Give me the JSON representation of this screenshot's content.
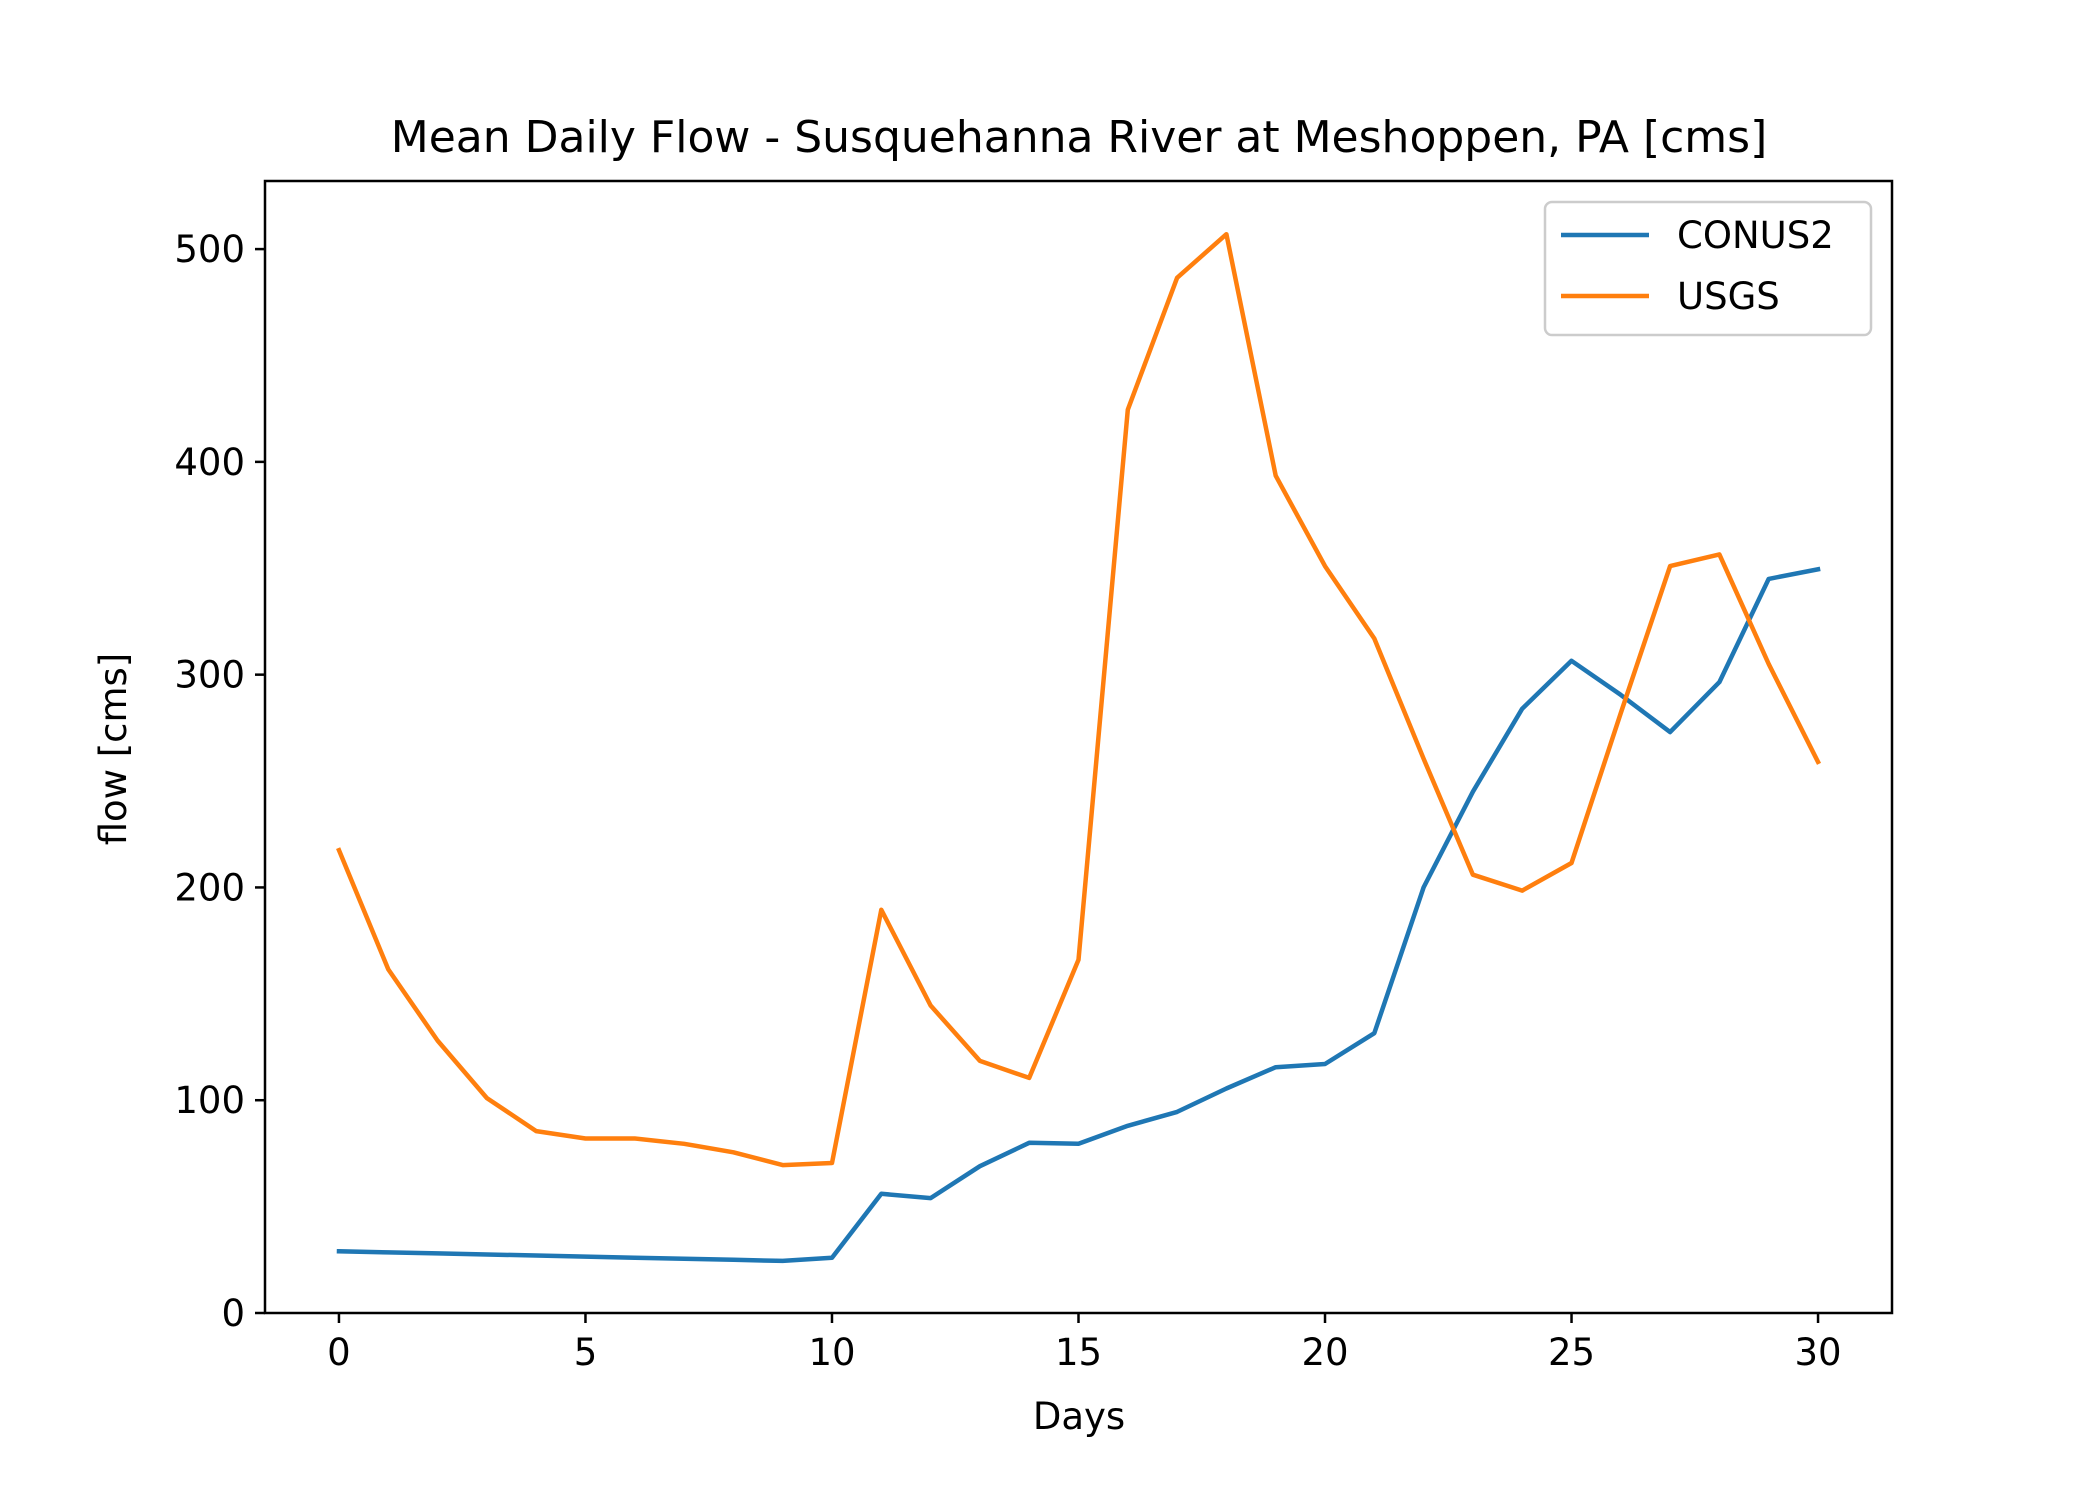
{
  "chart_data": {
    "type": "line",
    "title": "Mean Daily Flow - Susquehanna River at Meshoppen, PA [cms]",
    "xlabel": "Days",
    "ylabel": "flow [cms]",
    "xlim": [
      -1.5,
      31.5
    ],
    "ylim": [
      0,
      532
    ],
    "xticks": [
      0,
      5,
      10,
      15,
      20,
      25,
      30
    ],
    "yticks": [
      0,
      100,
      200,
      300,
      400,
      500
    ],
    "grid": false,
    "legend": "upper right",
    "x": [
      0,
      1,
      2,
      3,
      4,
      5,
      6,
      7,
      8,
      9,
      10,
      11,
      12,
      13,
      14,
      15,
      16,
      17,
      18,
      19,
      20,
      21,
      22,
      23,
      24,
      25,
      26,
      27,
      28,
      29,
      30
    ],
    "series": [
      {
        "name": "CONUS2",
        "color": "#1f77b4",
        "values": [
          29,
          28.5,
          28,
          27.5,
          27,
          26.5,
          26,
          25.5,
          25,
          24.5,
          26,
          56,
          54,
          69,
          80,
          79.5,
          88,
          94.5,
          105.5,
          115.5,
          117,
          131.5,
          200,
          245,
          284,
          306.5,
          290.5,
          273,
          296.5,
          345,
          349.5
        ]
      },
      {
        "name": "USGS",
        "color": "#ff7f0e",
        "values": [
          217.5,
          161.5,
          128,
          101,
          85.5,
          82,
          82,
          79.5,
          75.5,
          69.5,
          70.5,
          189.5,
          144.5,
          118.5,
          110.5,
          166,
          424.5,
          486.5,
          507,
          393.5,
          351,
          317,
          260.5,
          206,
          198.5,
          211.5,
          282,
          351,
          356.5,
          305,
          259
        ]
      }
    ]
  }
}
